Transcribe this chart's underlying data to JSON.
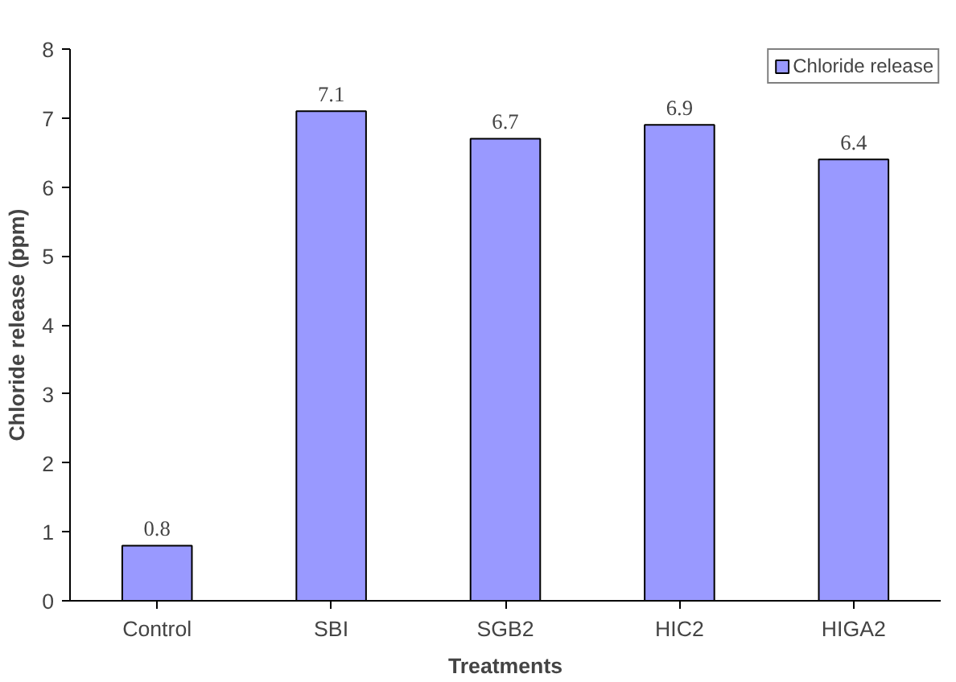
{
  "chart_data": {
    "type": "bar",
    "xlabel": "Treatments",
    "ylabel": "Chloride release (ppm)",
    "categories": [
      "Control",
      "SBI",
      "SGB2",
      "HIC2",
      "HIGA2"
    ],
    "series": [
      {
        "name": "Chloride release",
        "color": "#9999ff",
        "values": [
          0.8,
          7.1,
          6.7,
          6.9,
          6.4
        ]
      }
    ],
    "ylim": [
      0,
      8
    ],
    "yticks": [
      0,
      1,
      2,
      3,
      4,
      5,
      6,
      7,
      8
    ],
    "grid": false,
    "legend": "top right",
    "data_labels": true
  }
}
